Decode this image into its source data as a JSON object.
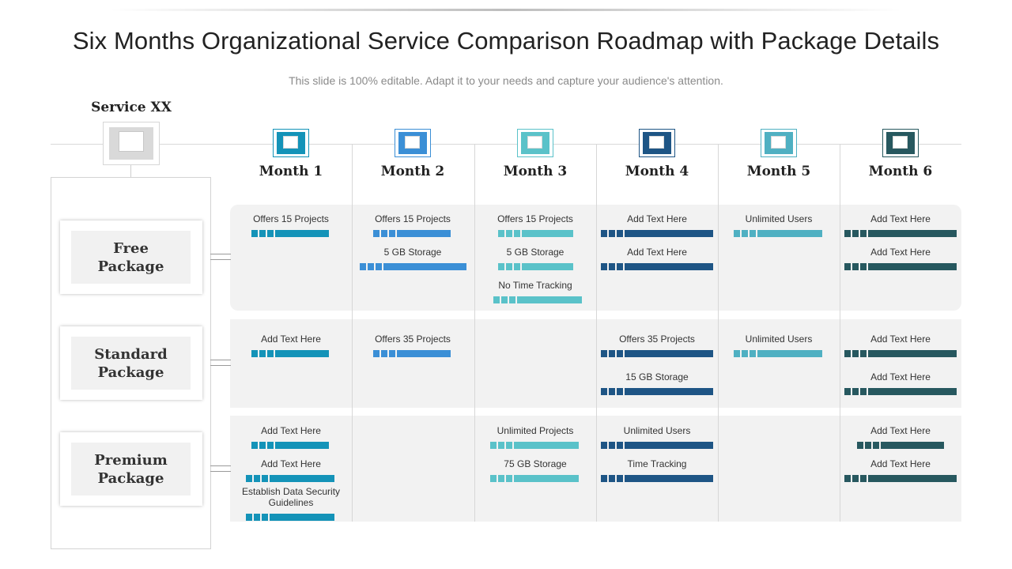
{
  "header": {
    "title": "Six Months Organizational Service Comparison Roadmap with Package Details",
    "subtitle": "This slide is 100% editable. Adapt it to your needs and capture your audience's attention."
  },
  "service": {
    "label": "Service XX"
  },
  "colors": {
    "month1": "#1493b8",
    "month2": "#3b8fd6",
    "month3": "#5ac2c9",
    "month4": "#1e5585",
    "month5": "#4fb0c2",
    "month6": "#27585f"
  },
  "months": [
    {
      "label": "Month 1"
    },
    {
      "label": "Month 2"
    },
    {
      "label": "Month 3"
    },
    {
      "label": "Month 4"
    },
    {
      "label": "Month 5"
    },
    {
      "label": "Month 6"
    }
  ],
  "packages": [
    {
      "label": "Free\nPackage",
      "items": [
        {
          "month": 0,
          "text": "Offers 15 Projects"
        },
        {
          "month": 1,
          "text": "Offers 15 Projects"
        },
        {
          "month": 1,
          "text": "5 GB Storage"
        },
        {
          "month": 2,
          "text": "Offers 15 Projects"
        },
        {
          "month": 2,
          "text": "5 GB Storage"
        },
        {
          "month": 2,
          "text": "No Time Tracking"
        },
        {
          "month": 3,
          "text": "Add Text Here"
        },
        {
          "month": 3,
          "text": "Add Text Here"
        },
        {
          "month": 4,
          "text": "Unlimited Users"
        },
        {
          "month": 5,
          "text": "Add Text Here"
        },
        {
          "month": 5,
          "text": "Add Text Here"
        }
      ]
    },
    {
      "label": "Standard\nPackage",
      "items": [
        {
          "month": 0,
          "text": "Add Text Here"
        },
        {
          "month": 1,
          "text": "Offers 35 Projects"
        },
        {
          "month": 3,
          "text": "Offers 35 Projects"
        },
        {
          "month": 3,
          "text": "15 GB Storage"
        },
        {
          "month": 4,
          "text": "Unlimited Users"
        },
        {
          "month": 5,
          "text": "Add Text Here"
        },
        {
          "month": 5,
          "text": "Add Text Here"
        }
      ]
    },
    {
      "label": "Premium\nPackage",
      "items": [
        {
          "month": 0,
          "text": "Add Text Here"
        },
        {
          "month": 0,
          "text": "Add Text Here"
        },
        {
          "month": 0,
          "text": "Establish Data Security\nGuidelines"
        },
        {
          "month": 2,
          "text": "Unlimited Projects"
        },
        {
          "month": 2,
          "text": "75 GB Storage"
        },
        {
          "month": 3,
          "text": "Unlimited Users"
        },
        {
          "month": 3,
          "text": "Time Tracking"
        },
        {
          "month": 5,
          "text": "Add Text Here"
        },
        {
          "month": 5,
          "text": "Add Text Here"
        }
      ]
    }
  ]
}
